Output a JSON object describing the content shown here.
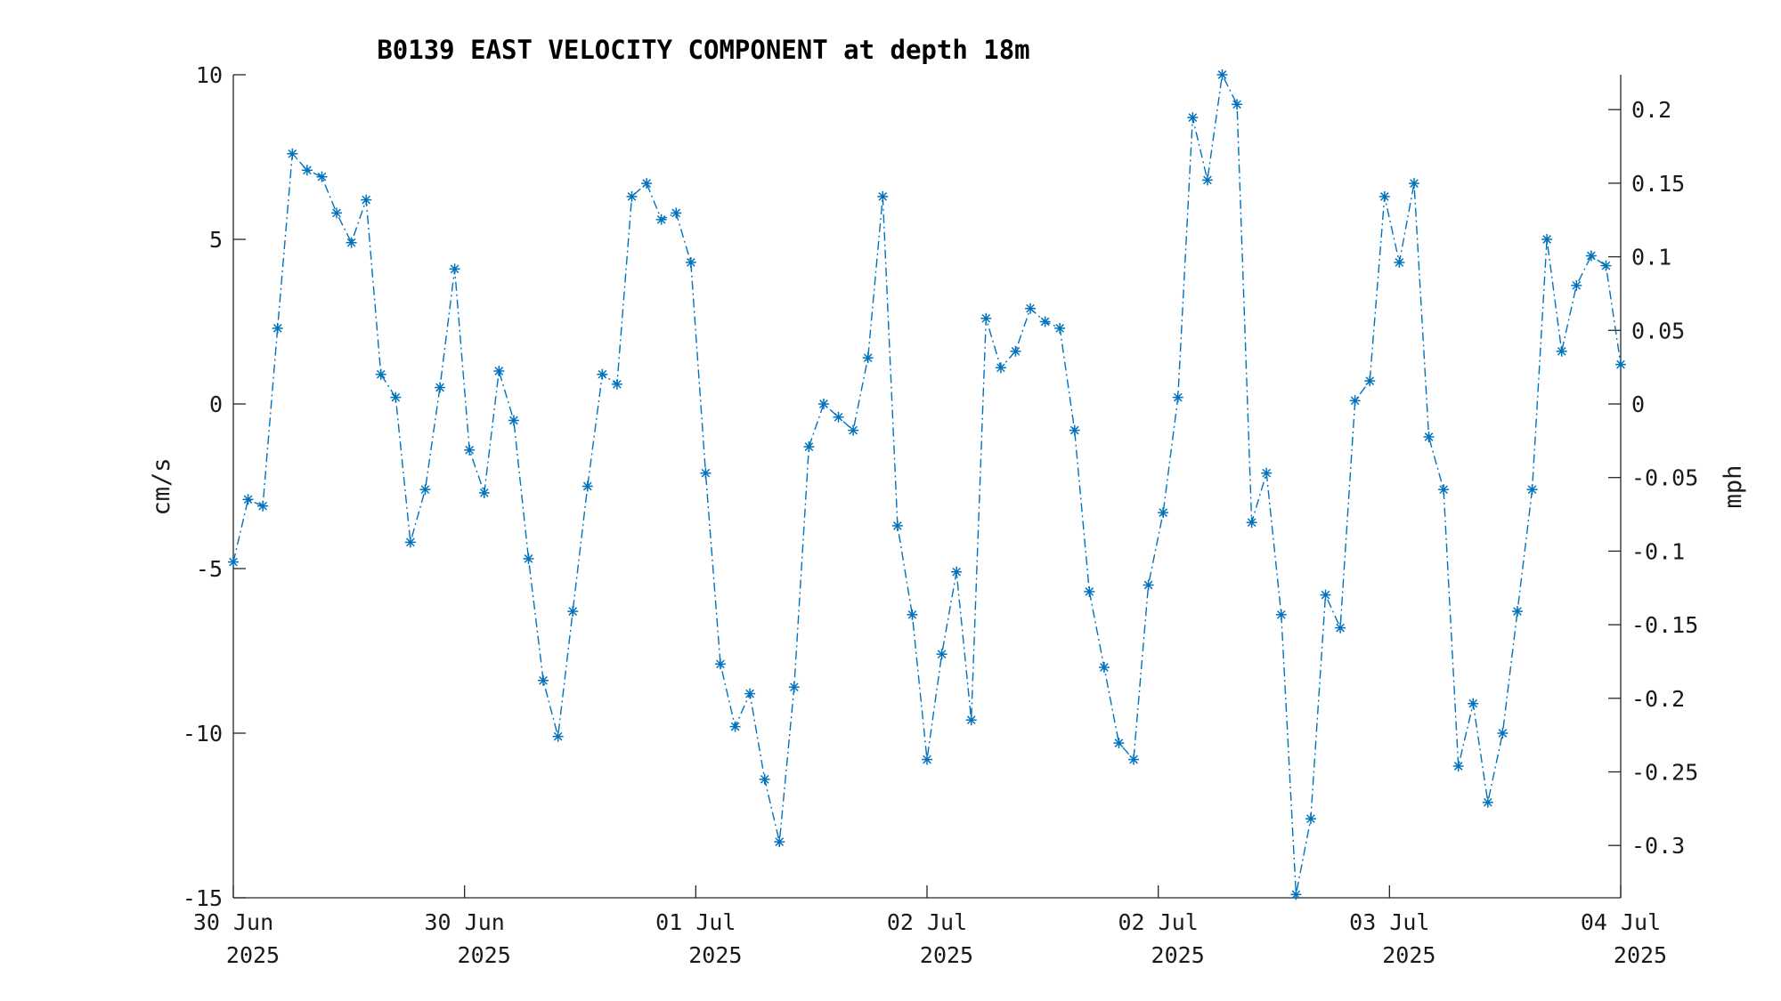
{
  "chart_data": {
    "type": "line",
    "title": "B0139 EAST VELOCITY COMPONENT at depth 18m",
    "ylabel": "cm/s",
    "ylabel_right": "mph",
    "ylim": [
      -15,
      10
    ],
    "y_ticks": [
      "10",
      "5",
      "0",
      "-5",
      "-10",
      "-15"
    ],
    "y_right_ticks": [
      "0.2",
      "0.15",
      "0.1",
      "0.05",
      "0",
      "-0.05",
      "-0.1",
      "-0.15",
      "-0.2",
      "-0.25",
      "-0.3"
    ],
    "x_ticks": [
      {
        "line1": "30 Jun",
        "line2": "2025"
      },
      {
        "line1": "30 Jun",
        "line2": "2025"
      },
      {
        "line1": "01 Jul",
        "line2": "2025"
      },
      {
        "line1": "02 Jul",
        "line2": "2025"
      },
      {
        "line1": "02 Jul",
        "line2": "2025"
      },
      {
        "line1": "03 Jul",
        "line2": "2025"
      },
      {
        "line1": "04 Jul",
        "line2": "2025"
      }
    ],
    "grid": false,
    "marker": "asterisk",
    "line_style": "dash-dot",
    "color": "#0072BD",
    "series": [
      {
        "values": [
          -4.8,
          -2.9,
          -3.1,
          2.3,
          7.6,
          7.1,
          6.9,
          5.8,
          4.9,
          6.2,
          0.9,
          0.2,
          -4.2,
          -2.6,
          0.5,
          4.1,
          -1.4,
          -2.7,
          1.0,
          -0.5,
          -4.7,
          -8.4,
          -10.1,
          -6.3,
          -2.5,
          0.9,
          0.6,
          6.3,
          6.7,
          5.6,
          5.8,
          4.3,
          -2.1,
          -7.9,
          -9.8,
          -8.8,
          -11.4,
          -13.3,
          -8.6,
          -1.3,
          0.0,
          -0.4,
          -0.8,
          1.4,
          6.3,
          -3.7,
          -6.4,
          -10.8,
          -7.6,
          -5.1,
          -9.6,
          2.6,
          1.1,
          1.6,
          2.9,
          2.5,
          2.3,
          -0.8,
          -5.7,
          -8.0,
          -10.3,
          -10.8,
          -5.5,
          -3.3,
          0.2,
          8.7,
          6.8,
          10.0,
          9.1,
          -3.6,
          -2.1,
          -6.4,
          -14.9,
          -12.6,
          -5.8,
          -6.8,
          0.1,
          0.7,
          6.3,
          4.3,
          6.7,
          -1.0,
          -2.6,
          -11.0,
          -9.1,
          -12.1,
          -10.0,
          -6.3,
          -2.6,
          5.0,
          1.6,
          3.6,
          4.5,
          4.2,
          1.2
        ]
      }
    ]
  }
}
